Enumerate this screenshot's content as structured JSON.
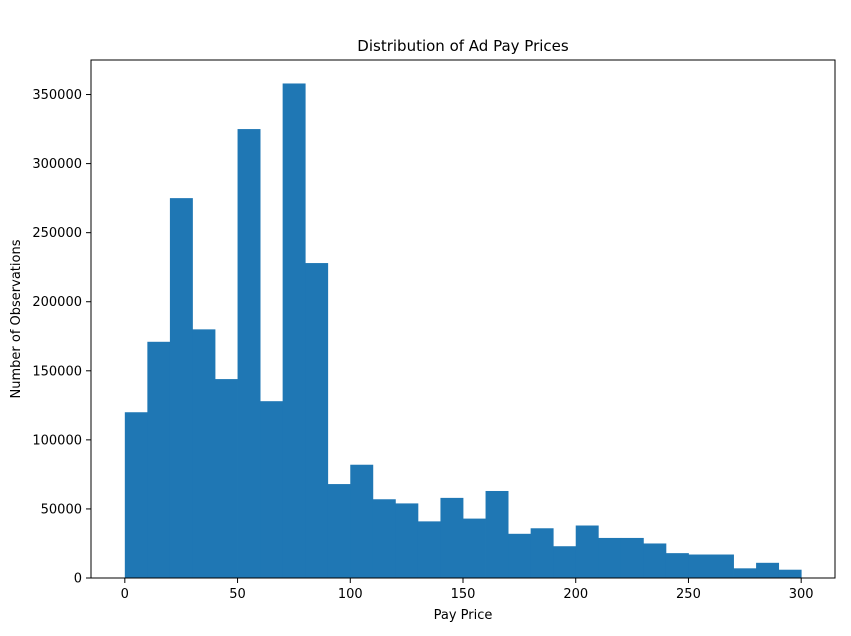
{
  "chart_data": {
    "type": "bar",
    "title": "Distribution of Ad Pay Prices",
    "xlabel": "Pay Price",
    "ylabel": "Number of Observations",
    "xlim": [
      -15,
      315
    ],
    "ylim": [
      0,
      375000
    ],
    "xticks": [
      0,
      50,
      100,
      150,
      200,
      250,
      300
    ],
    "yticks": [
      0,
      50000,
      100000,
      150000,
      200000,
      250000,
      300000,
      350000
    ],
    "bin_edges": [
      0,
      10,
      20,
      30,
      40,
      50,
      60,
      70,
      80,
      90,
      100,
      110,
      120,
      130,
      140,
      150,
      160,
      170,
      180,
      190,
      200,
      210,
      220,
      230,
      240,
      250,
      260,
      270,
      280,
      290,
      300
    ],
    "values": [
      120000,
      171000,
      275000,
      180000,
      144000,
      325000,
      128000,
      358000,
      228000,
      68000,
      82000,
      57000,
      54000,
      41000,
      58000,
      43000,
      63000,
      32000,
      36000,
      23000,
      38000,
      29000,
      29000,
      25000,
      18000,
      17000,
      17000,
      7000,
      11000,
      6000
    ],
    "bar_color": "#1f77b4",
    "grid": false,
    "legend": "none"
  }
}
